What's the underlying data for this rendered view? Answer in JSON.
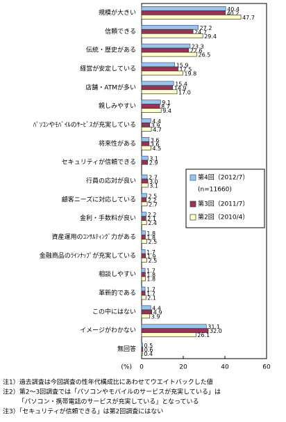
{
  "chart_data": {
    "type": "hbar",
    "categories": [
      "規模が大きい",
      "信頼できる",
      "伝統・歴史がある",
      "経営が安定している",
      "店舗・ATMが多い",
      "親しみやすい",
      "ﾊﾟｿｺﾝやﾓﾊﾞｲﾙのｻｰﾋﾞｽが充実している",
      "将来性がある",
      "セキュリティが信頼できる",
      "行員の応対が良い",
      "顧客ニーズに対応している",
      "金利・手数料が良い",
      "資産運用のｺﾝｻﾙﾃｨﾝｸﾞ力がある",
      "金融商品のﾗｲﾝﾅｯﾌﾟが充実している",
      "相談しやすい",
      "革新的である",
      "この中にはない",
      "イメージがわかない",
      "無回答"
    ],
    "series": [
      {
        "name": "第4回（2012/7）",
        "color": "#9dc3e6",
        "stroke": "#2f5597",
        "values": [
          40.4,
          27.2,
          23.3,
          15.9,
          15.4,
          9.1,
          4.4,
          3.6,
          3.1,
          2.7,
          2.5,
          2.2,
          1.8,
          1.7,
          1.7,
          1.7,
          4.4,
          31.1,
          0.5
        ],
        "value_labels": [
          "40.4",
          "27.2",
          "23.3",
          "15.9",
          "15.4",
          "9.1",
          "4.4",
          "3.6",
          "3.1",
          "2.7",
          "2.5",
          "2.2",
          "1.8",
          "1.7",
          "1.7",
          "1.7",
          "4.4",
          "31.1",
          "0.5"
        ]
      },
      {
        "name": "第3回（2011/7）",
        "color": "#993355",
        "stroke": "#333333",
        "values": [
          40.2,
          24.7,
          22.6,
          17.5,
          14.9,
          8.7,
          3.9,
          3.6,
          2.9,
          3.0,
          2.2,
          2.1,
          1.8,
          1.9,
          1.8,
          1.7,
          4.9,
          32.0,
          0.6
        ],
        "value_labels": [
          "40.2",
          "24.7",
          "22.6",
          "17.5",
          "14.9",
          "8.7",
          "3.9",
          "3.6",
          "2.9",
          "3.0",
          "2.2",
          "2.1",
          "1.8",
          "1.9",
          "1.8",
          "1.7",
          "4.9",
          "32.0",
          "0.6"
        ]
      },
      {
        "name": "第2回（2010/4）",
        "color": "#ffffcc",
        "stroke": "#333333",
        "values": [
          47.7,
          29.4,
          26.5,
          19.8,
          17.0,
          9.4,
          4.7,
          4.5,
          null,
          3.1,
          2.7,
          2.4,
          2.5,
          2.5,
          1.8,
          2.1,
          3.9,
          26.1,
          0.4
        ],
        "value_labels": [
          "47.7",
          "29.4",
          "26.5",
          "19.8",
          "17.0",
          "9.4",
          "4.7",
          "4.5",
          null,
          "3.1",
          "2.7",
          "2.4",
          "2.5",
          "2.5",
          "1.8",
          "2.1",
          "3.9",
          "26.1",
          "0.4"
        ]
      }
    ],
    "legend_note": "(n=11660)",
    "xlabel": "(%)",
    "xlim": [
      0,
      60
    ],
    "xticks": [
      0,
      20,
      40,
      60
    ],
    "grid": false,
    "notes": [
      "注1）過去調査は今回調査の性年代構成比にあわせてウエイトバックした値",
      "注2）第2～3回調査では「パソコンやモバイルのサービスが充実している」は",
      "　　　「パソコン・携帯電話のサービスが充実している」となっている",
      "注3）「セキュリティが信頼できる」は第2回調査にはない"
    ]
  }
}
